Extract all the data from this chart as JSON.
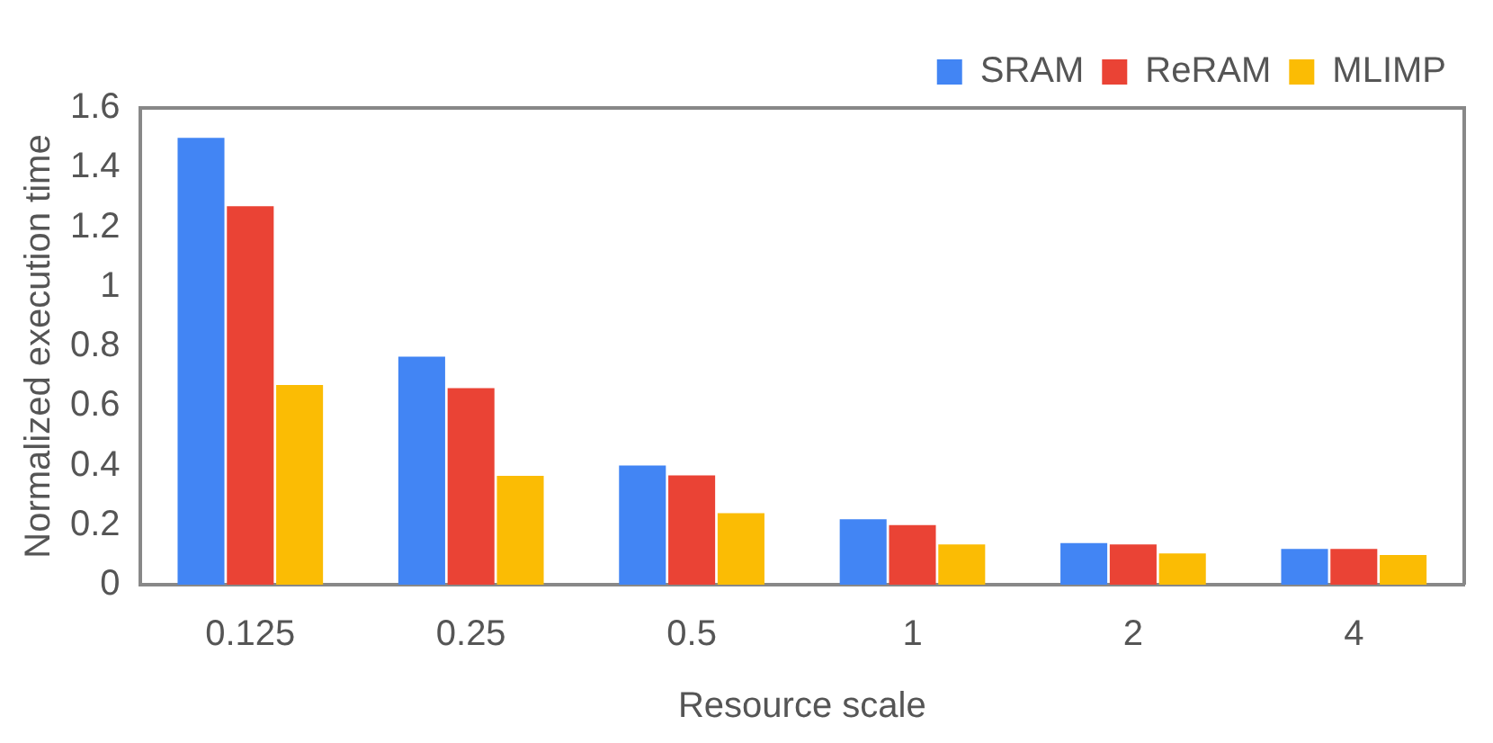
{
  "chart_data": {
    "type": "bar",
    "xlabel": "Resource scale",
    "ylabel": "Normalized execution time",
    "categories": [
      "0.125",
      "0.25",
      "0.5",
      "1",
      "2",
      "4"
    ],
    "series": [
      {
        "name": "SRAM",
        "color": "#4285f4",
        "values": [
          1.5,
          0.765,
          0.4,
          0.22,
          0.14,
          0.12
        ]
      },
      {
        "name": "ReRAM",
        "color": "#ea4335",
        "values": [
          1.27,
          0.66,
          0.367,
          0.2,
          0.135,
          0.12
        ]
      },
      {
        "name": "MLIMP",
        "color": "#fbbc04",
        "values": [
          0.67,
          0.365,
          0.24,
          0.135,
          0.105,
          0.1
        ]
      }
    ],
    "ylim": [
      0,
      1.6
    ],
    "yticks": [
      0,
      0.2,
      0.4,
      0.6,
      0.8,
      1,
      1.2,
      1.4,
      1.6
    ],
    "grid": false,
    "legend": "top right"
  }
}
